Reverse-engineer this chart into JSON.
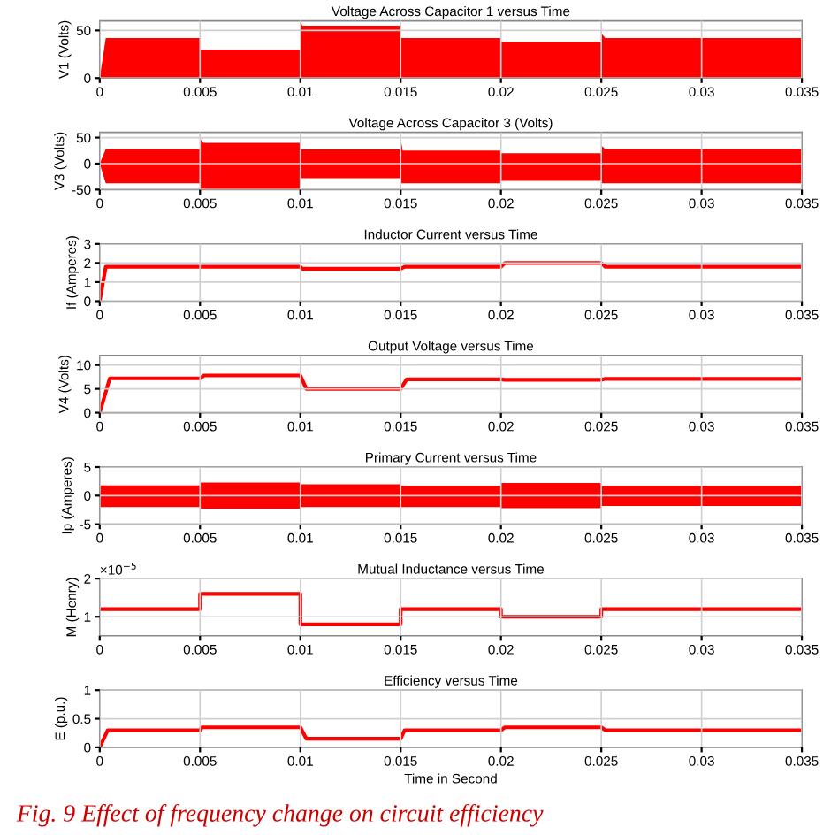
{
  "chart_data": [
    {
      "type": "area",
      "title": "Voltage Across Capacitor 1 versus Time",
      "ylabel": "V1 (Volts)",
      "xlim": [
        0,
        0.035
      ],
      "xticks": [
        0,
        0.005,
        0.01,
        0.015,
        0.02,
        0.025,
        0.03,
        0.035
      ],
      "ylim": [
        0,
        60
      ],
      "yticks": [
        0,
        50
      ],
      "grid": true,
      "series": [
        {
          "color": "#ff0000",
          "x": [
            0,
            0.0003,
            0.005,
            0.005,
            0.01,
            0.01,
            0.0101,
            0.015,
            0.015,
            0.02,
            0.02,
            0.025,
            0.025,
            0.0252,
            0.035
          ],
          "values": [
            0,
            42,
            42,
            30,
            30,
            60,
            55,
            55,
            42,
            42,
            38,
            38,
            47,
            42,
            42
          ]
        }
      ]
    },
    {
      "type": "area",
      "title": "Voltage Across Capacitor 3 (Volts)",
      "ylabel": "V3 (Volts)",
      "xlim": [
        0,
        0.035
      ],
      "xticks": [
        0,
        0.005,
        0.01,
        0.015,
        0.02,
        0.025,
        0.03,
        0.035
      ],
      "ylim": [
        -50,
        60
      ],
      "yticks": [
        -50,
        0,
        50
      ],
      "grid": true,
      "series": [
        {
          "color": "#ff0000",
          "x": [
            0,
            0.0003,
            0.005,
            0.005,
            0.0052,
            0.01,
            0.01,
            0.015,
            0.015,
            0.0151,
            0.02,
            0.02,
            0.025,
            0.025,
            0.0252,
            0.035
          ],
          "values": [
            0,
            28,
            28,
            47,
            40,
            40,
            27,
            27,
            48,
            25,
            25,
            20,
            20,
            35,
            28,
            28
          ]
        },
        {
          "color": "#ff0000",
          "x": [
            0,
            0.0003,
            0.005,
            0.005,
            0.0052,
            0.01,
            0.01,
            0.015,
            0.015,
            0.0151,
            0.02,
            0.02,
            0.025,
            0.025,
            0.0252,
            0.035
          ],
          "values": [
            0,
            -38,
            -38,
            -50,
            -50,
            -50,
            -28,
            -28,
            -38,
            -38,
            -38,
            -33,
            -33,
            -38,
            -38,
            -38
          ]
        }
      ]
    },
    {
      "type": "line",
      "title": "Inductor Current versus Time",
      "ylabel": "If (Amperes)",
      "xlim": [
        0,
        0.035
      ],
      "xticks": [
        0,
        0.005,
        0.01,
        0.015,
        0.02,
        0.025,
        0.03,
        0.035
      ],
      "ylim": [
        0,
        3
      ],
      "yticks": [
        0,
        1,
        2,
        3
      ],
      "grid": true,
      "series": [
        {
          "color": "#ff0000",
          "x": [
            0,
            0.0003,
            0.005,
            0.0051,
            0.01,
            0.0101,
            0.015,
            0.0152,
            0.02,
            0.0202,
            0.025,
            0.0252,
            0.035
          ],
          "values": [
            0,
            1.8,
            1.8,
            1.8,
            1.8,
            1.7,
            1.7,
            1.8,
            1.8,
            2,
            2,
            1.8,
            1.8
          ]
        }
      ]
    },
    {
      "type": "line",
      "title": "Output Voltage versus Time",
      "ylabel": "V4 (Volts)",
      "xlim": [
        0,
        0.035
      ],
      "xticks": [
        0,
        0.005,
        0.01,
        0.015,
        0.02,
        0.025,
        0.03,
        0.035
      ],
      "ylim": [
        0,
        12
      ],
      "yticks": [
        0,
        5,
        10
      ],
      "grid": true,
      "series": [
        {
          "color": "#ff0000",
          "x": [
            0,
            0.0005,
            0.005,
            0.0052,
            0.01,
            0.0103,
            0.015,
            0.0153,
            0.02,
            0.0202,
            0.025,
            0.0252,
            0.035
          ],
          "values": [
            0,
            7.2,
            7.2,
            7.8,
            7.8,
            5,
            5,
            7,
            7,
            6.9,
            6.9,
            7.1,
            7.1
          ]
        }
      ]
    },
    {
      "type": "area",
      "title": "Primary Current versus Time",
      "ylabel": "Ip (Amperes)",
      "xlim": [
        0,
        0.035
      ],
      "xticks": [
        0,
        0.005,
        0.01,
        0.015,
        0.02,
        0.025,
        0.03,
        0.035
      ],
      "ylim": [
        -5,
        5
      ],
      "yticks": [
        -5,
        0,
        5
      ],
      "grid": true,
      "series": [
        {
          "color": "#ff0000",
          "x": [
            0,
            0.005,
            0.005,
            0.01,
            0.01,
            0.015,
            0.015,
            0.02,
            0.02,
            0.025,
            0.025,
            0.035
          ],
          "values": [
            1.8,
            1.8,
            2.3,
            2.3,
            2,
            2,
            1.7,
            1.7,
            2.2,
            2.2,
            1.7,
            1.7
          ]
        },
        {
          "color": "#ff0000",
          "x": [
            0,
            0.005,
            0.005,
            0.01,
            0.01,
            0.015,
            0.015,
            0.02,
            0.02,
            0.025,
            0.025,
            0.035
          ],
          "values": [
            -2,
            -2,
            -2.3,
            -2.3,
            -2,
            -2,
            -2,
            -2,
            -2.2,
            -2.2,
            -1.8,
            -1.8
          ]
        }
      ]
    },
    {
      "type": "line",
      "title": "Mutual Inductance versus Time",
      "ylabel": "M (Henry)",
      "xlim": [
        0,
        0.035
      ],
      "xticks": [
        0,
        0.005,
        0.01,
        0.015,
        0.02,
        0.025,
        0.03,
        0.035
      ],
      "ylim": [
        0.5,
        2
      ],
      "yticks": [
        1,
        2
      ],
      "grid": true,
      "annotations": [
        "×10$^{−5}$"
      ],
      "series": [
        {
          "color": "#ff0000",
          "x": [
            0,
            0.005,
            0.005,
            0.01,
            0.01,
            0.015,
            0.015,
            0.02,
            0.02,
            0.025,
            0.025,
            0.035
          ],
          "values": [
            1.2,
            1.2,
            1.6,
            1.6,
            0.8,
            0.8,
            1.2,
            1.2,
            1,
            1,
            1.2,
            1.2
          ]
        }
      ]
    },
    {
      "type": "line",
      "title": "Efficiency versus Time",
      "ylabel": "E (p.u.)",
      "xlabel": "Time in Second",
      "xlim": [
        0,
        0.035
      ],
      "xticks": [
        0,
        0.005,
        0.01,
        0.015,
        0.02,
        0.025,
        0.03,
        0.035
      ],
      "ylim": [
        0,
        1
      ],
      "yticks": [
        0,
        0.5,
        1
      ],
      "grid": true,
      "annotations": [
        "Fig. 9 Effect of frequency change on circuit efficiency"
      ],
      "series": [
        {
          "color": "#ff0000",
          "x": [
            0,
            0.0004,
            0.005,
            0.0051,
            0.01,
            0.0103,
            0.015,
            0.0152,
            0.02,
            0.0202,
            0.025,
            0.0252,
            0.035
          ],
          "values": [
            0,
            0.3,
            0.3,
            0.35,
            0.35,
            0.15,
            0.15,
            0.3,
            0.3,
            0.35,
            0.35,
            0.3,
            0.3
          ]
        }
      ]
    }
  ]
}
